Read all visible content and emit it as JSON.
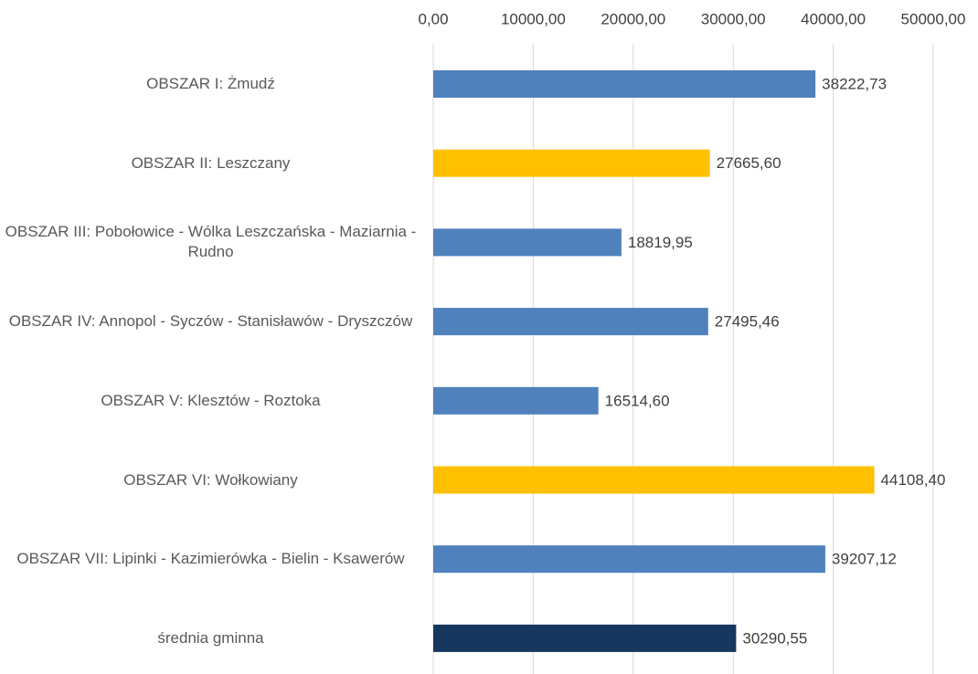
{
  "chart_data": {
    "type": "bar",
    "orientation": "horizontal",
    "categories": [
      "OBSZAR I: Żmudź",
      "OBSZAR II: Leszczany",
      "OBSZAR III: Pobołowice - Wólka Leszczańska - Maziarnia - Rudno",
      "OBSZAR IV: Annopol - Syczów - Stanisławów - Dryszczów",
      "OBSZAR V: Klesztów - Roztoka",
      "OBSZAR VI: Wołkowiany",
      "OBSZAR VII: Lipinki - Kazimierówka - Bielin - Ksawerów",
      "średnia gminna"
    ],
    "values": [
      38222.73,
      27665.6,
      18819.95,
      27495.46,
      16514.6,
      44108.4,
      39207.12,
      30290.55
    ],
    "value_labels": [
      "38222,73",
      "27665,60",
      "18819,95",
      "27495,46",
      "16514,60",
      "44108,40",
      "39207,12",
      "30290,55"
    ],
    "colors": [
      "#4f81bd",
      "#ffc000",
      "#4f81bd",
      "#4f81bd",
      "#4f81bd",
      "#ffc000",
      "#4f81bd",
      "#17375e"
    ],
    "xlim": [
      0,
      50000
    ],
    "xticks": [
      {
        "value": 0,
        "label": "0,00"
      },
      {
        "value": 10000,
        "label": "10000,00"
      },
      {
        "value": 20000,
        "label": "20000,00"
      },
      {
        "value": 30000,
        "label": "30000,00"
      },
      {
        "value": 40000,
        "label": "40000,00"
      },
      {
        "value": 50000,
        "label": "50000,00"
      }
    ],
    "grid": true
  }
}
